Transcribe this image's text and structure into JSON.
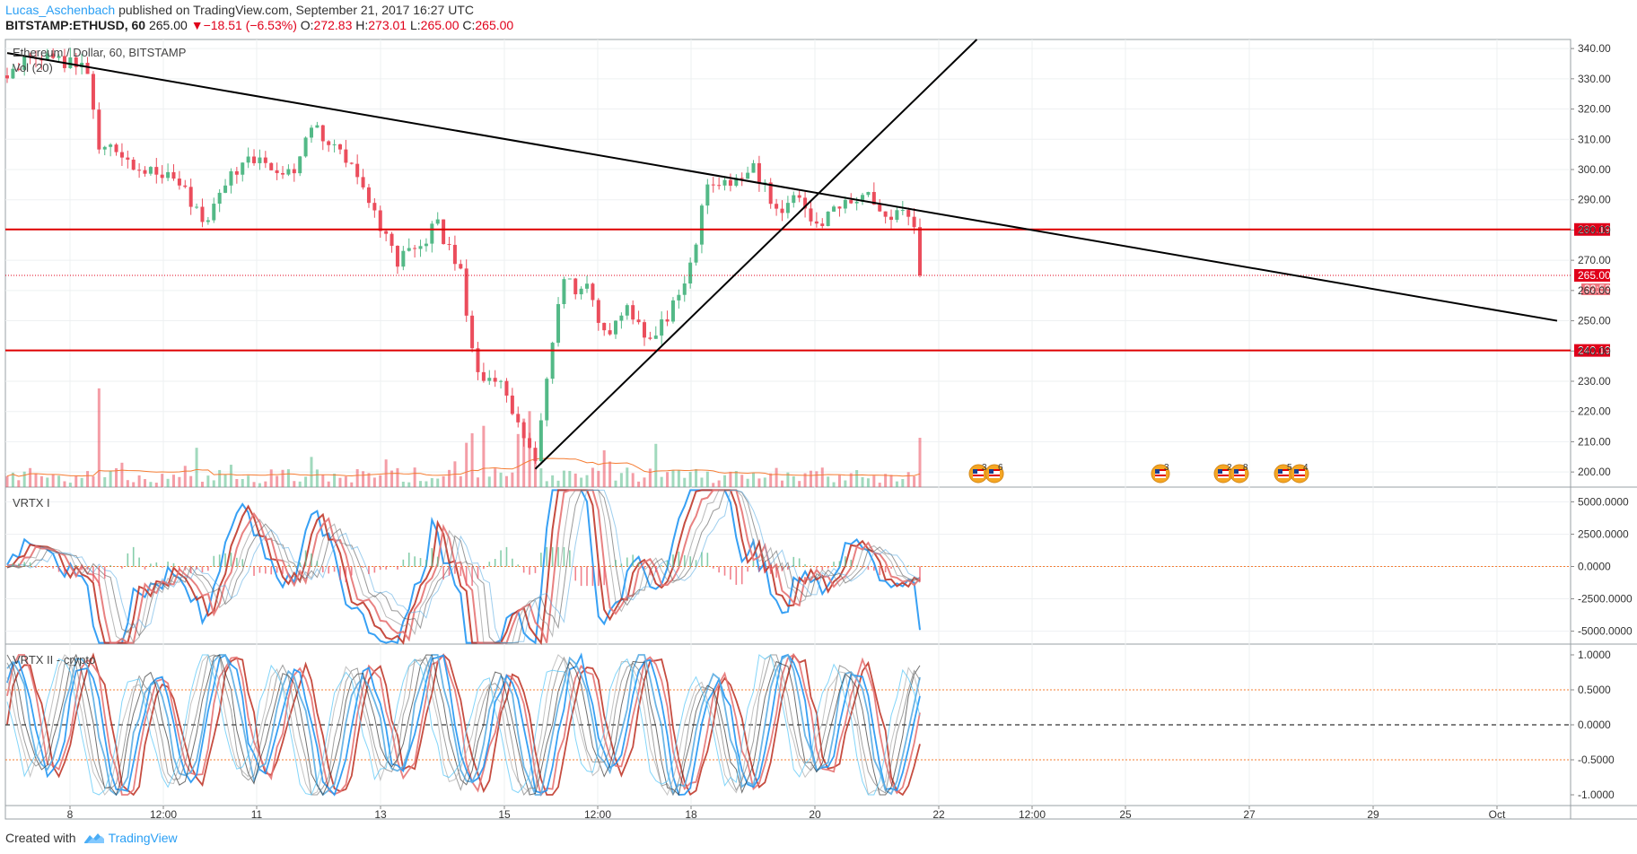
{
  "header": {
    "author": "Lucas_Aschenbach",
    "published": "published on TradingView.com, September 21, 2017 16:27 UTC"
  },
  "quote": {
    "symbol": "BITSTAMP:ETHUSD, 60",
    "last": "265.00",
    "arrow": "▼",
    "change": "−18.51 (−6.53%)",
    "o_label": "O:",
    "o": "272.83",
    "h_label": "H:",
    "h": "273.01",
    "l_label": "L:",
    "l": "265.00",
    "c_label": "C:",
    "c": "265.00"
  },
  "footer": {
    "created_with": "Created with",
    "brand": "TradingView"
  },
  "colors": {
    "up": "#53b987",
    "down": "#eb4d5c",
    "support_line": "#e00000",
    "trend_line": "#000000",
    "price_tag": "#e0001a",
    "volume_ma": "#f57c32",
    "accent": "#2a9ff4"
  },
  "chart_data": [
    {
      "type": "candlestick",
      "title": "Ethereum / Dollar, 60, BITSTAMP",
      "study_label": "Vol (20)",
      "x_ticks": [
        "8",
        "12:00",
        "11",
        "13",
        "15",
        "12:00",
        "18",
        "20",
        "22",
        "12:00",
        "25",
        "27",
        "29",
        "Oct"
      ],
      "y_ticks": [
        340,
        330,
        320,
        310,
        300,
        290,
        280,
        270,
        260,
        250,
        240,
        230,
        220,
        210,
        200
      ],
      "ylim": [
        195,
        343
      ],
      "horizontal_levels": [
        {
          "value": 280.19,
          "label": "280.19"
        },
        {
          "value": 240.19,
          "label": "240.19"
        }
      ],
      "last_price": {
        "value": 265.0,
        "label": "265.00",
        "countdown": "32:53"
      },
      "price_path_anchors": [
        [
          0,
          330
        ],
        [
          3,
          336
        ],
        [
          8,
          338
        ],
        [
          14,
          332
        ],
        [
          16,
          308
        ],
        [
          22,
          302
        ],
        [
          30,
          295
        ],
        [
          33,
          287
        ],
        [
          35,
          282
        ],
        [
          38,
          296
        ],
        [
          42,
          305
        ],
        [
          46,
          300
        ],
        [
          50,
          298
        ],
        [
          53,
          315
        ],
        [
          56,
          310
        ],
        [
          60,
          300
        ],
        [
          65,
          280
        ],
        [
          68,
          270
        ],
        [
          72,
          275
        ],
        [
          75,
          282
        ],
        [
          79,
          265
        ],
        [
          82,
          232
        ],
        [
          86,
          230
        ],
        [
          90,
          210
        ],
        [
          92,
          205
        ],
        [
          95,
          245
        ],
        [
          97,
          262
        ],
        [
          101,
          260
        ],
        [
          104,
          246
        ],
        [
          108,
          253
        ],
        [
          112,
          243
        ],
        [
          115,
          252
        ],
        [
          119,
          268
        ],
        [
          122,
          295
        ],
        [
          127,
          295
        ],
        [
          130,
          300
        ],
        [
          134,
          287
        ],
        [
          138,
          290
        ],
        [
          141,
          282
        ],
        [
          145,
          287
        ],
        [
          149,
          292
        ],
        [
          153,
          285
        ],
        [
          156,
          285
        ],
        [
          158,
          279
        ],
        [
          159,
          265
        ]
      ],
      "trend_lines": [
        {
          "from": [
            0,
            338.5
          ],
          "to": [
            270,
            250
          ]
        },
        {
          "from": [
            92,
            201
          ],
          "to": [
            170,
            345
          ]
        }
      ],
      "event_markers": [
        {
          "label": "3",
          "label2": "6"
        },
        {
          "label": "3"
        },
        {
          "label": "2",
          "label2": "8"
        },
        {
          "label": "5",
          "label2": "4"
        }
      ]
    },
    {
      "type": "line",
      "title": "VRTX I",
      "y_ticks": [
        "5000.0000",
        "2500.0000",
        "0.0000",
        "-2500.0000",
        "-5000.0000"
      ],
      "ylim": [
        -6000,
        6000
      ]
    },
    {
      "type": "line",
      "title": "VRTX II - crypto",
      "y_ticks": [
        "1.0000",
        "0.5000",
        "0.0000",
        "-0.5000",
        "-1.0000"
      ],
      "ylim": [
        -1,
        1
      ],
      "bands": [
        0.5,
        0,
        -0.5
      ]
    }
  ]
}
